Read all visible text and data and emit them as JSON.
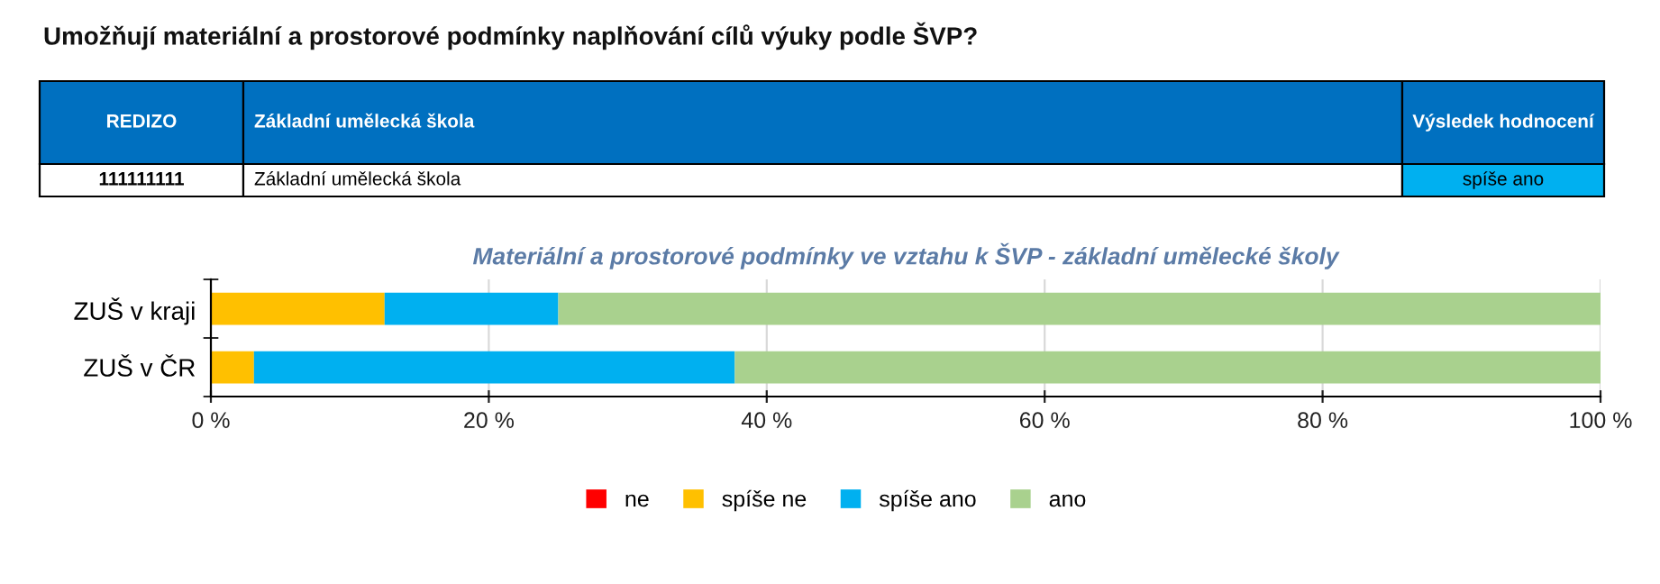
{
  "chart_data": [
    {
      "type": "other",
      "title": "Umožňují materiální a prostorové podmínky naplňování cílů výuky podle ŠVP?",
      "annotations": [
        "REDIZO",
        "Základní umělecká škola",
        "Výsledek hodnocení",
        "111111111",
        "Základní umělecká škola",
        "spíše ano"
      ]
    },
    {
      "type": "bar",
      "orientation": "horizontal",
      "stacked": true,
      "title": "Materiální a prostorové podmínky ve vztahu k ŠVP - základní umělecké školy",
      "categories": [
        "ZUŠ v kraji",
        "ZUŠ v ČR"
      ],
      "series": [
        {
          "name": "ne",
          "color": "#ff0000",
          "values": [
            0,
            0
          ]
        },
        {
          "name": "spíše ne",
          "color": "#ffc000",
          "values": [
            12.5,
            3.1
          ]
        },
        {
          "name": "spíše ano",
          "color": "#00b0f0",
          "values": [
            12.5,
            34.6
          ]
        },
        {
          "name": "ano",
          "color": "#a9d18e",
          "values": [
            75,
            62.3
          ]
        }
      ],
      "xlim": [
        0,
        100
      ],
      "xticks": [
        {
          "value": 0,
          "label": "0 %"
        },
        {
          "value": 20,
          "label": "20 %"
        },
        {
          "value": 40,
          "label": "40 %"
        },
        {
          "value": 60,
          "label": "60 %"
        },
        {
          "value": 80,
          "label": "80 %"
        },
        {
          "value": 100,
          "label": "100 %"
        }
      ],
      "grid": "x",
      "legend": "bottom"
    }
  ]
}
